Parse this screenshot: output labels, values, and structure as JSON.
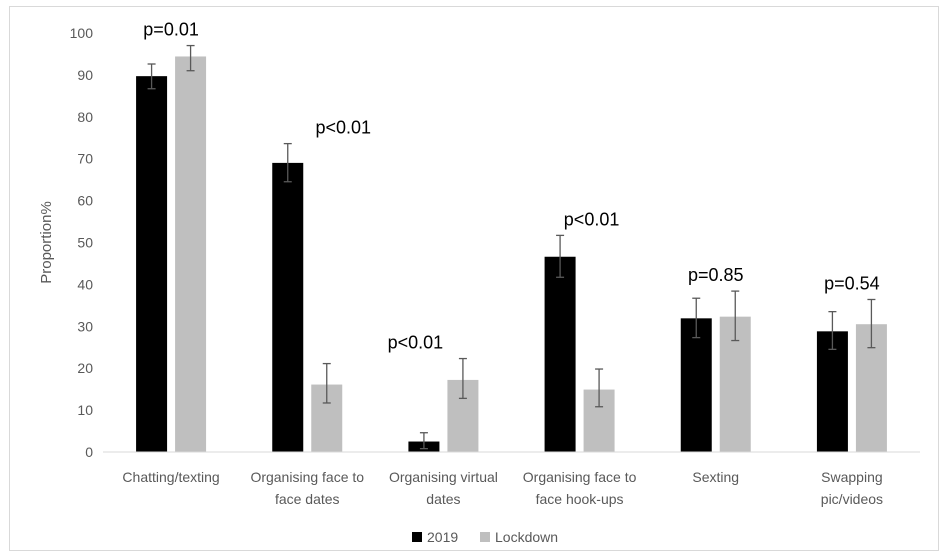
{
  "chart_data": {
    "type": "bar",
    "ylabel": "Proportion%",
    "ylim": [
      0,
      100
    ],
    "yticks": [
      "0",
      "10",
      "20",
      "30",
      "40",
      "50",
      "60",
      "70",
      "80",
      "90",
      "100"
    ],
    "grid": false,
    "legend_position": "bottom",
    "categories": [
      [
        "Chatting/texting"
      ],
      [
        "Organising face to",
        "face dates"
      ],
      [
        "Organising virtual",
        "dates"
      ],
      [
        "Organising face to",
        "face hook-ups"
      ],
      [
        "Sexting"
      ],
      [
        "Swapping",
        "pic/videos"
      ]
    ],
    "series": [
      {
        "name": "2019",
        "color": "#000000",
        "values": [
          89.7,
          69.0,
          2.5,
          46.6,
          31.9,
          28.8
        ],
        "err_low": [
          86.7,
          64.5,
          0.8,
          41.7,
          27.3,
          24.5
        ],
        "err_high": [
          92.6,
          73.6,
          4.6,
          51.7,
          36.7,
          33.5
        ]
      },
      {
        "name": "Lockdown",
        "color": "#bfbfbf",
        "values": [
          94.4,
          16.1,
          17.2,
          14.9,
          32.3,
          30.5
        ],
        "err_low": [
          91.0,
          11.7,
          12.8,
          10.8,
          26.6,
          24.9
        ],
        "err_high": [
          97.0,
          21.1,
          22.3,
          19.8,
          38.4,
          36.4
        ]
      }
    ],
    "annotations": [
      {
        "category_index": 0,
        "text": "p=0.01",
        "y": 97.0
      },
      {
        "category_index": 1,
        "text": "p<0.01",
        "y": 73.6
      },
      {
        "category_index": 2,
        "text": "p<0.01",
        "y": 22.3
      },
      {
        "category_index": 3,
        "text": "p<0.01",
        "y": 51.7
      },
      {
        "category_index": 4,
        "text": "p=0.85",
        "y": 38.4
      },
      {
        "category_index": 5,
        "text": "p=0.54",
        "y": 36.4
      }
    ]
  }
}
